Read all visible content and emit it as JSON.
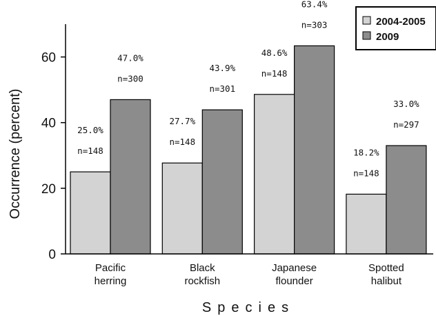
{
  "chart_data": {
    "type": "bar",
    "xlabel": "Species",
    "ylabel": "Occurrence (percent)",
    "ylim": [
      0,
      70
    ],
    "yticks": [
      0,
      20,
      40,
      60
    ],
    "grid": false,
    "legend_position": "top-right",
    "categories": [
      [
        "Pacific",
        "herring"
      ],
      [
        "Black",
        "rockfish"
      ],
      [
        "Japanese",
        "flounder"
      ],
      [
        "Spotted",
        "halibut"
      ]
    ],
    "series": [
      {
        "name": "2004-2005",
        "color": "#d3d3d3",
        "values": [
          25.0,
          27.7,
          48.6,
          18.2
        ],
        "pct_labels": [
          "25.0%",
          "27.7%",
          "48.6%",
          "18.2%"
        ],
        "n_labels": [
          "n=148",
          "n=148",
          "n=148",
          "n=148"
        ]
      },
      {
        "name": "2009",
        "color": "#8c8c8c",
        "values": [
          47.0,
          43.9,
          63.4,
          33.0
        ],
        "pct_labels": [
          "47.0%",
          "43.9%",
          "63.4%",
          "33.0%"
        ],
        "n_labels": [
          "n=300",
          "n=301",
          "n=303",
          "n=297"
        ]
      }
    ]
  }
}
